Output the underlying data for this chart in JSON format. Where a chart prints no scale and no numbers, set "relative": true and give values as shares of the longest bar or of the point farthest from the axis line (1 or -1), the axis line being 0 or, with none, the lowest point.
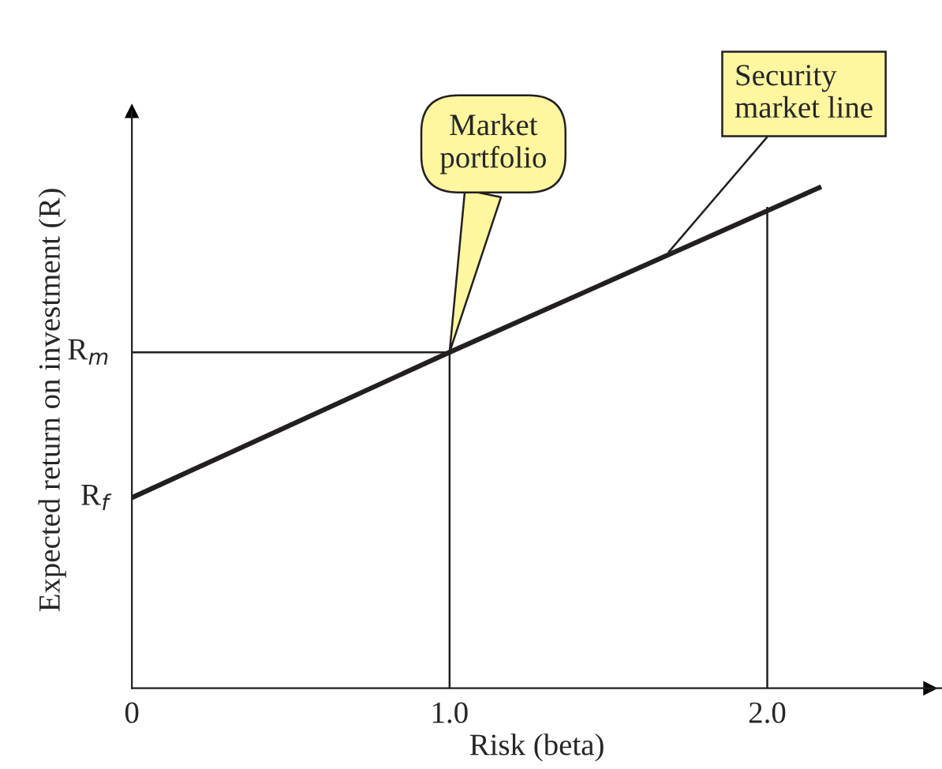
{
  "chart_data": {
    "type": "line",
    "relative": true,
    "xlabel": "Risk (beta)",
    "ylabel": "Expected return on investment (R)",
    "xlim": [
      0,
      2.55
    ],
    "xticks": [
      {
        "value": 0,
        "label": "0"
      },
      {
        "value": 1,
        "label": "1.0"
      },
      {
        "value": 2,
        "label": "2.0"
      }
    ],
    "series": [
      {
        "color": "#231f20",
        "x": [
          0,
          1,
          2.17
        ],
        "values": [
          0.38,
          0.67,
          1.0
        ]
      },
      {
        "color": "#231f20",
        "x": [
          0,
          1
        ],
        "values": [
          0.67,
          0.67
        ]
      },
      {
        "color": "#231f20",
        "x": [
          1,
          1
        ],
        "values": [
          0,
          0.67
        ]
      },
      {
        "color": "#231f20",
        "x": [
          2,
          2
        ],
        "values": [
          0,
          0.96
        ]
      }
    ],
    "annotations": [
      {
        "text": "R$_{f}$",
        "x": 0,
        "y": 0.38
      },
      {
        "text": "R$_{m}$",
        "x": 0,
        "y": 0.67
      },
      {
        "text": "Market\nportfolio",
        "x": 1,
        "y": 0.67
      },
      {
        "text": "Security\nmarket line",
        "x": 1.69,
        "y": 0.87
      }
    ],
    "grid": false,
    "legend": false,
    "marker": "none",
    "line_style": "solid"
  }
}
